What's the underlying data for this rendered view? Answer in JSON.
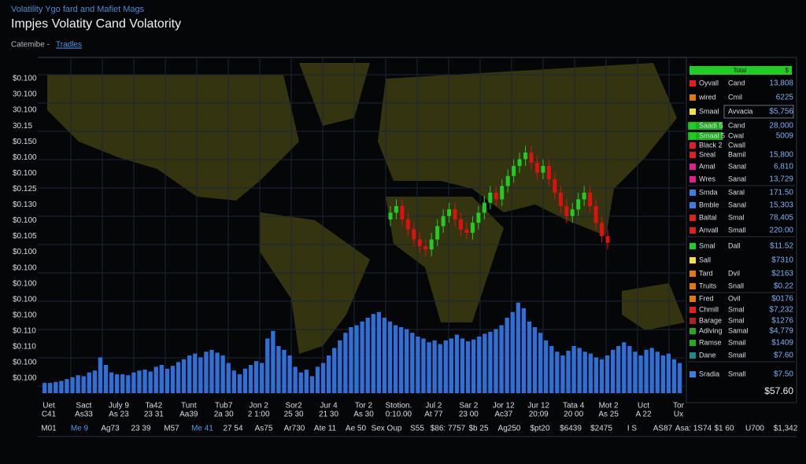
{
  "header": {
    "kicker": "Volatility Ygo fard and Mafiet Mags",
    "title": "Impjes Volatity Cand Volatority",
    "crumb": "Catemibe -",
    "crumb_link": "Tradles"
  },
  "y_labels": [
    "$0.100",
    "30.100",
    "30.100",
    "30.15",
    "$0.150",
    "$0.100",
    "$0.100",
    "$0.125",
    "$0.130",
    "$0.100",
    "$0.105",
    "$0.100",
    "$0.100",
    "$0.100",
    "$0.100",
    "$0.100",
    "$0.110",
    "$0.110",
    "$0.100",
    "$0.100"
  ],
  "x_labels_top": [
    "Uet",
    "Sact",
    "July 9",
    "Ta42",
    "Tunt",
    "Tub7",
    "Jon 2",
    "Sor2",
    "Jur 4",
    "Tor 2",
    "Stotion.",
    "Jul 2",
    "Sar 2",
    "Jor 12",
    "Jur 12",
    "Tata 4",
    "Mot 2",
    "Uct",
    "Tor"
  ],
  "x_labels_mid": [
    "C41",
    "As33",
    "As 23",
    "23 31",
    "Aa39",
    "2a 30",
    "2 1:00",
    "25 30",
    "21 30",
    "As 30",
    "0:10.00",
    "At 77",
    "23 00",
    "Ac37",
    "20:09",
    "20 00",
    "As 25",
    "A 22",
    "Ux"
  ],
  "x_labels_bottom": [
    "M01",
    "Me 9",
    "Ag73",
    "23 39",
    "M57",
    "Me 41",
    "27 54",
    "As75",
    "Ar730",
    "Ate 11",
    "Ae 50",
    "Sex Oup",
    "S55",
    "$86: 7757",
    "$b 25",
    "Ag250",
    "$pt20",
    "$6439",
    "$2475",
    "I S",
    "AS87",
    "Asa: 1S74",
    "$1 60",
    "U700",
    "$1,342"
  ],
  "sidebar": {
    "head": "Total",
    "head_value": "$",
    "total": "$57.60",
    "rows": [
      {
        "color": "#e02020",
        "name": "Oyvall",
        "kind": "Cand",
        "value": "13,808"
      },
      {
        "color": "#e07a10",
        "name": "wired",
        "kind": "Cmil",
        "value": "6225"
      },
      {
        "color": "#f0e040",
        "name": "Smaal",
        "kind": "Avvacia",
        "value": "$5,756"
      },
      {
        "color": "#22cc22",
        "name": "Saadi 5",
        "kind": "Cand",
        "value": "28,000"
      },
      {
        "color": "#22cc22",
        "name": "Smaal 5",
        "kind": "Cwal",
        "value": "5009"
      },
      {
        "color": "#e02020",
        "name": "Black 2",
        "kind": "Cwall",
        "value": ""
      },
      {
        "color": "#e02020",
        "name": "Sreal",
        "kind": "Bamil",
        "value": "15,800"
      },
      {
        "color": "#e0208a",
        "name": "Amal",
        "kind": "Sanal",
        "value": "6,810"
      },
      {
        "color": "#e0208a",
        "name": "Wres",
        "kind": "Sanal",
        "value": "13,729"
      },
      {
        "color": "#3a7ee0",
        "name": "Smda",
        "kind": "Saral",
        "value": "171.50"
      },
      {
        "color": "#3a7ee0",
        "name": "Bmble",
        "kind": "Sanal",
        "value": "15,303"
      },
      {
        "color": "#e02020",
        "name": "Baltal",
        "kind": "Smal",
        "value": "78,405"
      },
      {
        "color": "#e02020",
        "name": "Anvall",
        "kind": "Small",
        "value": "220.00"
      },
      {
        "color": "#22cc22",
        "name": "Smal",
        "kind": "Dall",
        "value": "$11.52"
      },
      {
        "color": "#f0e040",
        "name": "Sall",
        "kind": "",
        "value": "$7310"
      },
      {
        "color": "#e07a10",
        "name": "Tard",
        "kind": "Dvil",
        "value": "$2163"
      },
      {
        "color": "#e07a10",
        "name": "Truits",
        "kind": "Snall",
        "value": "$0.22"
      },
      {
        "color": "#e07a10",
        "name": "Fred",
        "kind": "Ovil",
        "value": "$0176"
      },
      {
        "color": "#e02020",
        "name": "Chmill",
        "kind": "Smal",
        "value": "$7,232"
      },
      {
        "color": "#b02020",
        "name": "Barage",
        "kind": "Smal",
        "value": "$1276"
      },
      {
        "color": "#22aa22",
        "name": "Adiving",
        "kind": "Samal",
        "value": "$4,779"
      },
      {
        "color": "#22aa22",
        "name": "Ramse",
        "kind": "Smail",
        "value": "$1409"
      },
      {
        "color": "#1a8a8a",
        "name": "Dane",
        "kind": "Smail",
        "value": "$7.60"
      },
      {
        "color": "#3a7ee0",
        "name": "Sradia",
        "kind": "Small",
        "value": "$7.50"
      }
    ]
  },
  "chart_data": [
    {
      "type": "candlestick",
      "up_color": "#22cc22",
      "down_color": "#e01010",
      "ylim": [
        0,
        100
      ],
      "open": [
        52,
        54,
        56,
        52,
        49,
        46,
        44,
        43,
        46,
        50,
        53,
        55,
        52,
        49,
        48,
        51,
        54,
        57,
        60,
        58,
        62,
        65,
        68,
        70,
        72,
        69,
        66,
        68,
        64,
        60,
        56,
        53,
        55,
        58,
        60,
        56,
        51,
        47
      ],
      "high": [
        56,
        58,
        58,
        54,
        51,
        48,
        46,
        48,
        52,
        55,
        57,
        57,
        54,
        51,
        53,
        56,
        59,
        62,
        62,
        64,
        67,
        70,
        72,
        74,
        74,
        71,
        70,
        70,
        66,
        62,
        58,
        57,
        60,
        62,
        62,
        58,
        53,
        49
      ],
      "low": [
        50,
        52,
        50,
        47,
        44,
        42,
        41,
        41,
        44,
        48,
        51,
        50,
        47,
        46,
        46,
        49,
        52,
        55,
        56,
        56,
        60,
        63,
        66,
        68,
        67,
        64,
        64,
        62,
        58,
        54,
        51,
        51,
        53,
        56,
        54,
        49,
        45,
        43
      ],
      "close": [
        54,
        56,
        52,
        49,
        46,
        44,
        43,
        46,
        50,
        53,
        55,
        52,
        49,
        48,
        51,
        54,
        57,
        60,
        58,
        62,
        65,
        68,
        70,
        72,
        69,
        66,
        68,
        64,
        60,
        56,
        53,
        55,
        58,
        60,
        56,
        51,
        47,
        45
      ]
    },
    {
      "type": "bar",
      "color": "#2f6fd6",
      "ylim": [
        0,
        100
      ],
      "values": [
        11,
        11,
        12,
        13,
        15,
        17,
        19,
        18,
        22,
        24,
        38,
        30,
        22,
        20,
        20,
        19,
        22,
        24,
        25,
        23,
        28,
        30,
        26,
        29,
        33,
        36,
        40,
        42,
        38,
        44,
        46,
        43,
        40,
        32,
        24,
        20,
        26,
        30,
        34,
        32,
        58,
        66,
        50,
        46,
        40,
        28,
        22,
        25,
        18,
        28,
        32,
        40,
        48,
        56,
        64,
        70,
        72,
        76,
        80,
        84,
        86,
        80,
        76,
        72,
        70,
        68,
        64,
        60,
        58,
        54,
        56,
        52,
        56,
        58,
        62,
        58,
        55,
        57,
        60,
        63,
        65,
        68,
        72,
        80,
        86,
        96,
        90,
        76,
        70,
        64,
        56,
        50,
        44,
        40,
        45,
        50,
        48,
        44,
        42,
        38,
        36,
        40,
        46,
        50,
        54,
        50,
        44,
        40,
        46,
        48,
        44,
        40,
        42,
        36,
        32
      ]
    }
  ]
}
